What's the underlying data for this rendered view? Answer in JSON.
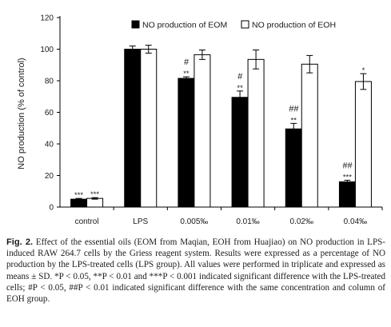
{
  "chart_data": {
    "type": "bar",
    "ylabel": "NO production (% of control)",
    "ylim": [
      0,
      120
    ],
    "yticks": [
      0,
      20,
      40,
      60,
      80,
      100,
      120
    ],
    "categories": [
      "control",
      "LPS",
      "0.005‰",
      "0.01‰",
      "0.02‰",
      "0.04‰"
    ],
    "series": [
      {
        "name": "NO production of EOM",
        "fill": "#000000",
        "values": [
          5,
          100,
          81.5,
          69.5,
          49.5,
          16
        ],
        "errors": [
          0.5,
          2,
          1,
          4,
          3.5,
          1
        ],
        "annotations": [
          [
            "***"
          ],
          [],
          [
            "#",
            "**"
          ],
          [
            "#",
            "**"
          ],
          [
            "##",
            "**"
          ],
          [
            "##",
            "***"
          ]
        ]
      },
      {
        "name": "NO production of EOH",
        "fill": "#ffffff",
        "values": [
          5.5,
          100,
          96.5,
          93.5,
          90.5,
          79.5
        ],
        "errors": [
          0.5,
          2.5,
          3,
          6,
          5.5,
          5
        ],
        "annotations": [
          [
            "***"
          ],
          [],
          [],
          [],
          [],
          [
            "*"
          ]
        ]
      }
    ],
    "legend_position": "top-right",
    "grid": false
  },
  "caption": {
    "label": "Fig. 2.",
    "text": "Effect of the essential oils (EOM from Maqian, EOH from Huajiao) on NO production in LPS-induced RAW 264.7 cells by the Griess reagent system. Results were expressed as a percentage of NO production by the LPS-treated cells (LPS group). All values were performed in triplicate and expressed as means ± SD. *P < 0.05, **P < 0.01 and ***P < 0.001 indicated significant difference with the LPS-treated cells; #P < 0.05, ##P < 0.01 indicated significant difference with the same concentration and column of EOH group."
  }
}
